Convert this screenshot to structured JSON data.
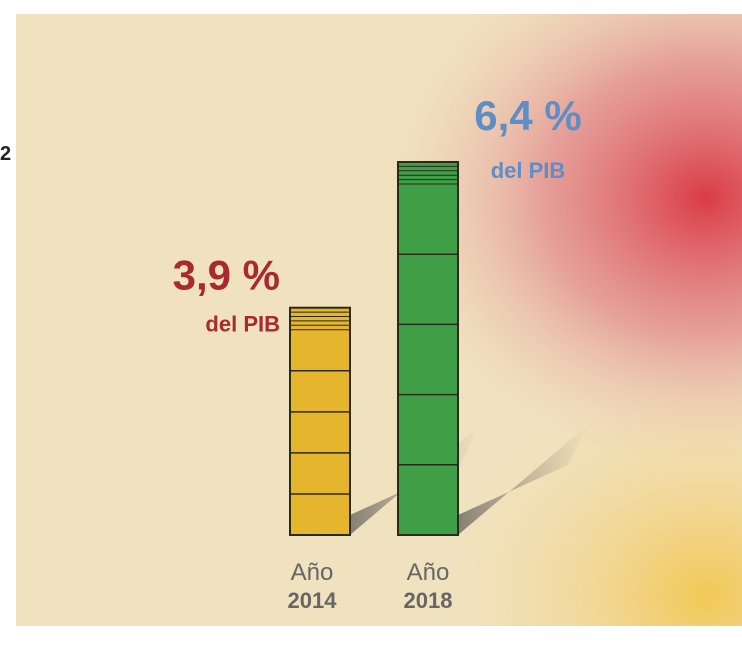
{
  "side_label": "2",
  "chart_data": {
    "type": "bar",
    "categories": [
      [
        "Año",
        "2014"
      ],
      [
        "Año",
        "2018"
      ]
    ],
    "values": [
      3.9,
      6.4
    ],
    "value_labels": [
      "3,9 %",
      "6,4 %"
    ],
    "value_subtitles": [
      "del PIB",
      "del PIB"
    ],
    "colors": [
      "#e6b52e",
      "#3f9f47"
    ],
    "label_colors": [
      "#a82a2e",
      "#5d8fc6"
    ]
  }
}
